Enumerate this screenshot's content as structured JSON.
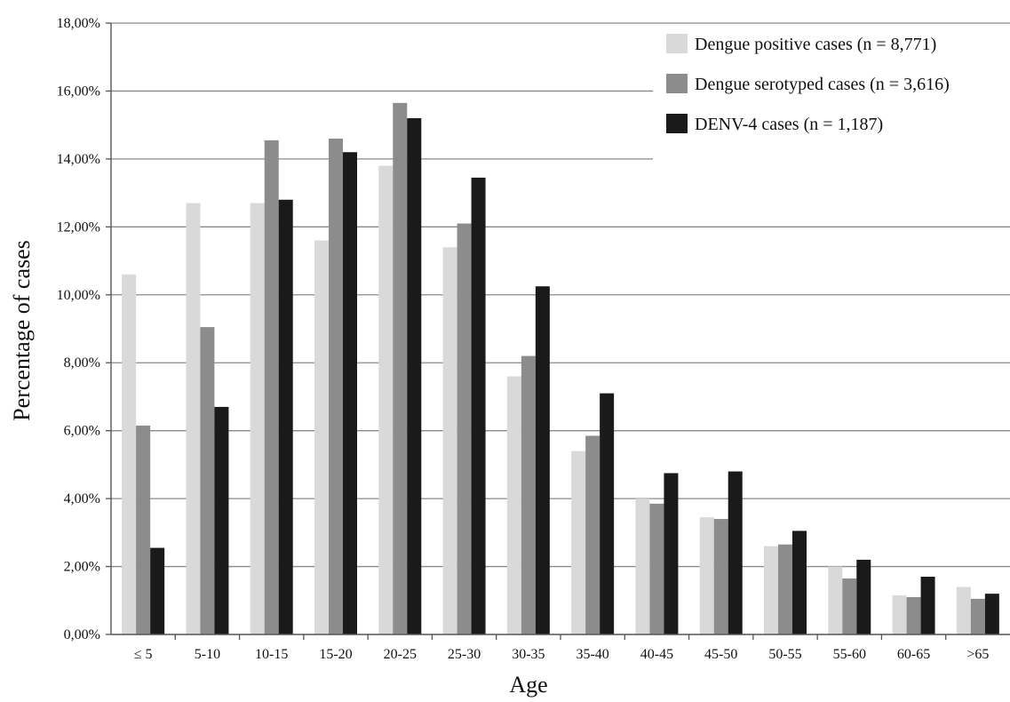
{
  "chart_data": {
    "type": "bar",
    "title": "",
    "xlabel": "Age",
    "ylabel": "Percentage of cases",
    "ylim": [
      0,
      18
    ],
    "y_tick_labels": [
      "0,00%",
      "2,00%",
      "4,00%",
      "6,00%",
      "8,00%",
      "10,00%",
      "12,00%",
      "14,00%",
      "16,00%",
      "18,00%"
    ],
    "grid": "horizontal",
    "legend_position": "top-right",
    "categories": [
      "≤ 5",
      "5-10",
      "10-15",
      "15-20",
      "20-25",
      "25-30",
      "30-35",
      "35-40",
      "40-45",
      "45-50",
      "50-55",
      "55-60",
      "60-65",
      ">65"
    ],
    "series": [
      {
        "name": "Dengue positive cases (n = 8,771)",
        "color": "#d9d9d9",
        "values": [
          10.6,
          12.7,
          12.7,
          11.6,
          13.8,
          11.4,
          7.6,
          5.4,
          4.0,
          3.45,
          2.6,
          2.0,
          1.15,
          1.4
        ]
      },
      {
        "name": "Dengue serotyped cases (n = 3,616)",
        "color": "#8c8c8c",
        "values": [
          6.15,
          9.05,
          14.55,
          14.6,
          15.65,
          12.1,
          8.2,
          5.85,
          3.85,
          3.4,
          2.65,
          1.65,
          1.1,
          1.05
        ]
      },
      {
        "name": "DENV-4 cases (n = 1,187)",
        "color": "#1a1a1a",
        "values": [
          2.55,
          6.7,
          12.8,
          14.2,
          15.2,
          13.45,
          10.25,
          7.1,
          4.75,
          4.8,
          3.05,
          2.2,
          1.7,
          1.2
        ]
      }
    ]
  }
}
